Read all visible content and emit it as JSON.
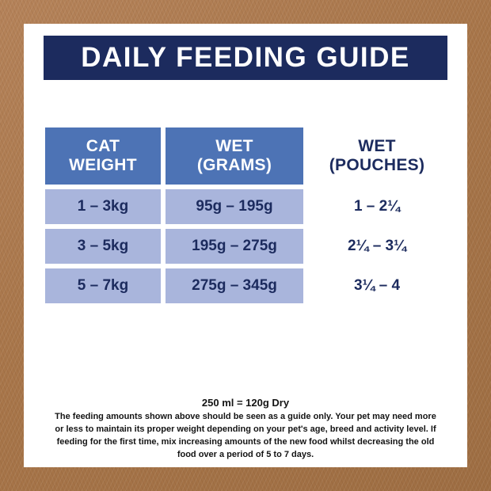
{
  "title": "DAILY FEEDING GUIDE",
  "table": {
    "headers": [
      "CAT\nWEIGHT",
      "WET\n(GRAMS)",
      "WET\n(POUCHES)"
    ],
    "rows": [
      {
        "weight": "1 – 3kg",
        "wet_grams": "95g – 195g",
        "wet_pouches": "1 – 2¼"
      },
      {
        "weight": "3 – 5kg",
        "wet_grams": "195g – 275g",
        "wet_pouches": "2¼ – 3¼"
      },
      {
        "weight": "5 – 7kg",
        "wet_grams": "275g – 345g",
        "wet_pouches": "3¼ – 4"
      }
    ]
  },
  "notes": {
    "equivalence": "250 ml = 120g Dry",
    "disclaimer": "The feeding amounts shown above should be seen as a guide only. Your pet may need more or less to maintain its proper weight depending on your pet's age, breed and activity level. If feeding for the first time, mix increasing amounts of the new food whilst decreasing the old food over a period of 5 to 7 days."
  },
  "colors": {
    "navy": "#1c2b5e",
    "header_blue": "#4d73b5",
    "cell_light_blue": "#a9b5dc",
    "kraft_brown": "#ab7b4d",
    "panel_white": "#ffffff"
  },
  "chart_data": {
    "type": "table",
    "title": "DAILY FEEDING GUIDE",
    "columns": [
      "CAT WEIGHT",
      "WET (GRAMS)",
      "WET (POUCHES)"
    ],
    "rows": [
      [
        "1 – 3kg",
        "95g – 195g",
        "1 – 2¼"
      ],
      [
        "3 – 5kg",
        "195g – 275g",
        "2¼ – 3¼"
      ],
      [
        "5 – 7kg",
        "275g – 345g",
        "3¼ – 4"
      ]
    ],
    "footnotes": [
      "250 ml = 120g Dry",
      "The feeding amounts shown above should be seen as a guide only. Your pet may need more or less to maintain its proper weight depending on your pet's age, breed and activity level. If feeding for the first time, mix increasing amounts of the new food whilst decreasing the old food over a period of 5 to 7 days."
    ]
  }
}
